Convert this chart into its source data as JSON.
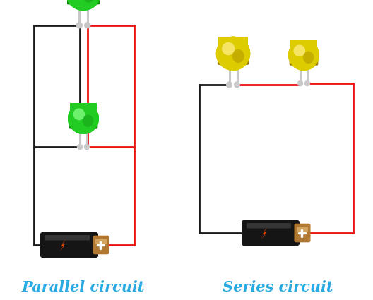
{
  "parallel_label": "Parallel circuit",
  "series_label": "Series circuit",
  "label_color": "#29ABE2",
  "label_fontsize": 15,
  "bg_color": "#FFFFFF",
  "wire_black": "#1A1A1A",
  "wire_red": "#EE1111",
  "wire_gray": "#C8C8C8",
  "battery_body_color": "#151515",
  "battery_cap_color": "#B07830",
  "battery_bolt_color": "#EE4400",
  "led_green_body": "#22CC22",
  "led_green_dark": "#118811",
  "led_green_mid": "#44AA44",
  "led_green_light": "#88FF88",
  "led_yellow_body": "#DDCC00",
  "led_yellow_dark": "#997700",
  "led_yellow_mid": "#BBAA00",
  "led_yellow_light": "#FFEE88"
}
